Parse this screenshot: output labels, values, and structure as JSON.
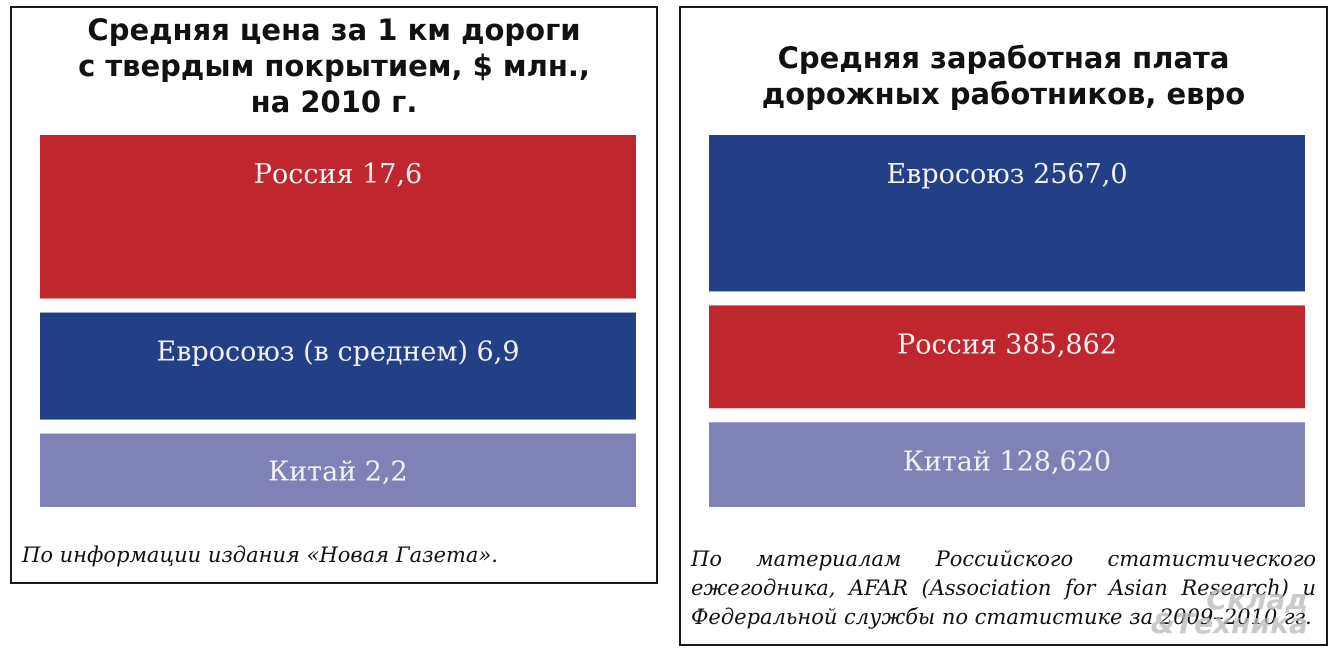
{
  "colors": {
    "red": "#c0262d",
    "blue": "#233f85",
    "lavender": "#8081b5"
  },
  "chart_data": [
    {
      "type": "bar",
      "orientation": "horizontal-stacked-blocks",
      "title": "Средняя цена за 1 км дороги\nс твердым покрытием, $ млн.,\nна 2010 г.",
      "categories": [
        "Россия",
        "Евросоюз (в среднем)",
        "Китай"
      ],
      "values": [
        17.6,
        6.9,
        2.2
      ],
      "value_labels": [
        "17,6",
        "6,9",
        "2,2"
      ],
      "bar_colors": [
        "#c0262d",
        "#233f85",
        "#8081b5"
      ],
      "source": "По информации издания «Новая Газета»."
    },
    {
      "type": "bar",
      "orientation": "horizontal-stacked-blocks",
      "title": "Средняя заработная плата\nдорожных работников, евро",
      "categories": [
        "Евросоюз",
        "Россия",
        "Китай"
      ],
      "values": [
        2567.0,
        385.862,
        128.62
      ],
      "value_labels": [
        "2567,0",
        "385,862",
        "128,620"
      ],
      "bar_colors": [
        "#233f85",
        "#c0262d",
        "#8081b5"
      ],
      "source": "По материалам Российского статистического ежегодника, AFAR (Association for Asian Research) и Федеральной службы по статистике за 2009–2010 гг."
    }
  ],
  "watermark": {
    "line1": "Склад",
    "line2": "&Техника"
  }
}
